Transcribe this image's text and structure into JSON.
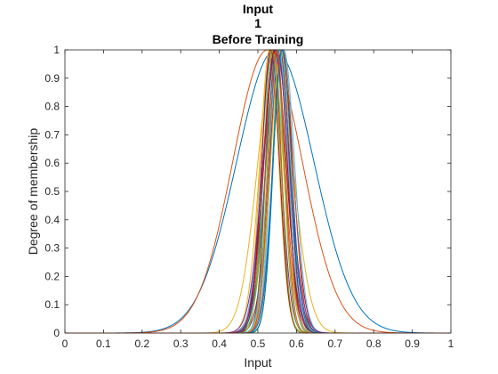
{
  "chart_data": {
    "type": "line",
    "title": [
      "Input",
      "1",
      "Before Training"
    ],
    "xlabel": "Input",
    "ylabel": "Degree of membership",
    "xlim": [
      0,
      1
    ],
    "ylim": [
      0,
      1
    ],
    "xticks": [
      "0",
      "0.1",
      "0.2",
      "0.3",
      "0.4",
      "0.5",
      "0.6",
      "0.7",
      "0.8",
      "0.9",
      "1"
    ],
    "yticks": [
      "0",
      "0.1",
      "0.2",
      "0.3",
      "0.4",
      "0.5",
      "0.6",
      "0.7",
      "0.8",
      "0.9",
      "1"
    ],
    "grid": false,
    "series": [
      {
        "color": "#0072BD",
        "mean": 0.545,
        "sigma": 0.1
      },
      {
        "color": "#D95319",
        "mean": 0.525,
        "sigma": 0.09
      },
      {
        "color": "#EDB120",
        "mean": 0.545,
        "sigma": 0.045
      },
      {
        "color": "#7E2F8E",
        "mean": 0.535,
        "sigma": 0.025
      },
      {
        "color": "#77AC30",
        "mean": 0.55,
        "sigma": 0.028
      },
      {
        "color": "#4DBEEE",
        "mean": 0.555,
        "sigma": 0.022
      },
      {
        "color": "#A2142F",
        "mean": 0.56,
        "sigma": 0.03
      },
      {
        "color": "#0072BD",
        "mean": 0.54,
        "sigma": 0.02
      },
      {
        "color": "#D95319",
        "mean": 0.565,
        "sigma": 0.026
      },
      {
        "color": "#EDB120",
        "mean": 0.53,
        "sigma": 0.024
      },
      {
        "color": "#7E2F8E",
        "mean": 0.548,
        "sigma": 0.032
      },
      {
        "color": "#77AC30",
        "mean": 0.558,
        "sigma": 0.02
      },
      {
        "color": "#4DBEEE",
        "mean": 0.538,
        "sigma": 0.028
      },
      {
        "color": "#A2142F",
        "mean": 0.552,
        "sigma": 0.024
      },
      {
        "color": "#0072BD",
        "mean": 0.562,
        "sigma": 0.022
      },
      {
        "color": "#D95319",
        "mean": 0.543,
        "sigma": 0.027
      },
      {
        "color": "#EDB120",
        "mean": 0.535,
        "sigma": 0.03
      },
      {
        "color": "#7E2F8E",
        "mean": 0.557,
        "sigma": 0.025
      },
      {
        "color": "#77AC30",
        "mean": 0.546,
        "sigma": 0.021
      },
      {
        "color": "#4DBEEE",
        "mean": 0.567,
        "sigma": 0.028
      },
      {
        "color": "#A2142F",
        "mean": 0.533,
        "sigma": 0.023
      },
      {
        "color": "#0072BD",
        "mean": 0.551,
        "sigma": 0.03
      },
      {
        "color": "#D95319",
        "mean": 0.541,
        "sigma": 0.02
      },
      {
        "color": "#EDB120",
        "mean": 0.559,
        "sigma": 0.026
      },
      {
        "color": "#7E2F8E",
        "mean": 0.547,
        "sigma": 0.034
      },
      {
        "color": "#77AC30",
        "mean": 0.537,
        "sigma": 0.022
      },
      {
        "color": "#4DBEEE",
        "mean": 0.554,
        "sigma": 0.025
      },
      {
        "color": "#A2142F",
        "mean": 0.544,
        "sigma": 0.029
      },
      {
        "color": "#0072BD",
        "mean": 0.563,
        "sigma": 0.024
      },
      {
        "color": "#D95319",
        "mean": 0.549,
        "sigma": 0.021
      }
    ]
  }
}
